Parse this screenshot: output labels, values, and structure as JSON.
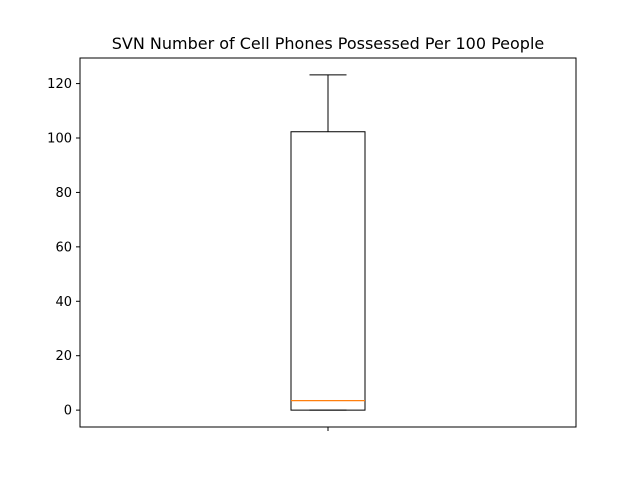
{
  "chart_data": {
    "type": "boxplot",
    "title": "SVN Number of Cell Phones Possessed Per 100 People",
    "xlabel": "",
    "ylabel": "",
    "categories": [
      ""
    ],
    "box": {
      "whisker_low": 0,
      "q1": 0,
      "median": 3.5,
      "q3": 102.3,
      "whisker_high": 123.2
    },
    "ylim": [
      -6.2,
      129.4
    ],
    "yticks": [
      0,
      20,
      40,
      60,
      80,
      100,
      120
    ],
    "ytick_labels": [
      "0",
      "20",
      "40",
      "60",
      "80",
      "100",
      "120"
    ],
    "grid": false,
    "colors": {
      "box": "#000000",
      "median": "#ff7f0e",
      "whisker": "#000000",
      "axes": "#000000"
    }
  }
}
